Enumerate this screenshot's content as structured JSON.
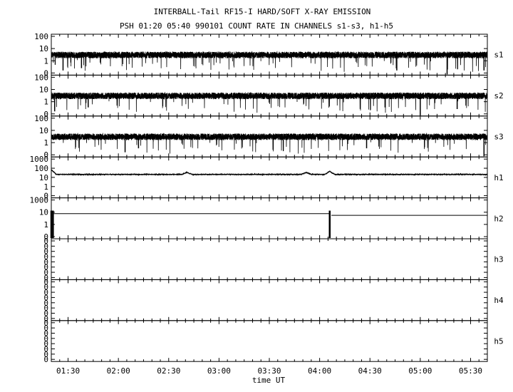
{
  "chart_data": {
    "type": "line",
    "title": "INTERBALL-Tail RF15-I HARD/SOFT X-RAY EMISSION",
    "subtitle": "PSH 01:20 05:40 990101  COUNT RATE IN CHANNELS s1-s3, h1-h5",
    "xlabel": "time UT",
    "x_range": [
      "01:20",
      "05:40"
    ],
    "x_ticks": [
      "01:30",
      "02:00",
      "02:30",
      "03:00",
      "03:30",
      "04:00",
      "04:30",
      "05:00",
      "05:30"
    ],
    "y_scale": "log",
    "grid": false,
    "panels": [
      {
        "name": "s1",
        "y_ticks": [
          "100",
          "10",
          "1",
          "0"
        ],
        "typical": 3,
        "noise": "high",
        "dips": [
          [
            "01:27",
            0.2
          ],
          [
            "01:38",
            0.3
          ],
          [
            "04:46",
            0.2
          ],
          [
            "05:16",
            0.1
          ],
          [
            "05:38",
            0.2
          ]
        ]
      },
      {
        "name": "s2",
        "y_ticks": [
          "100",
          "10",
          "1",
          "0"
        ],
        "typical": 3,
        "noise": "high",
        "dips": [
          [
            "01:22",
            0.2
          ],
          [
            "01:42",
            0.4
          ],
          [
            "04:39",
            0.4
          ],
          [
            "05:00",
            0.05
          ],
          [
            "05:22",
            0.3
          ]
        ]
      },
      {
        "name": "s3",
        "y_ticks": [
          "100",
          "10",
          "1",
          "0"
        ],
        "typical": 3,
        "noise": "high",
        "dips": [
          [
            "02:04",
            0.2
          ],
          [
            "02:12",
            0.4
          ],
          [
            "04:28",
            0.4
          ],
          [
            "05:38",
            0.05
          ]
        ]
      },
      {
        "name": "h1",
        "y_ticks": [
          "1000",
          "100",
          "10",
          "1",
          "0"
        ],
        "typical": 20,
        "noise": "low",
        "dips": [],
        "bumps": [
          [
            "01:20",
            60
          ],
          [
            "02:41",
            32
          ],
          [
            "03:52",
            32
          ],
          [
            "04:06",
            40
          ]
        ]
      },
      {
        "name": "h2",
        "y_ticks": [
          "1000",
          "10",
          "1",
          "0"
        ],
        "typical": 30,
        "segments": [
          [
            "01:21",
            "04:06",
            30
          ],
          [
            "04:07",
            "05:40",
            20
          ]
        ],
        "spikes": [
          [
            "01:20",
            0.05,
            60
          ],
          [
            "01:21",
            0.05,
            60
          ],
          [
            "04:06",
            0.05,
            60
          ]
        ]
      },
      {
        "name": "h3",
        "y_ticks": [
          "0",
          "0",
          "0",
          "0",
          "0",
          "0",
          "0",
          "0"
        ]
      },
      {
        "name": "h4",
        "y_ticks": [
          "0",
          "0",
          "0",
          "0",
          "0",
          "0",
          "0",
          "0"
        ]
      },
      {
        "name": "h5",
        "y_ticks": [
          "0",
          "0",
          "0",
          "0",
          "0",
          "0",
          "0",
          "0"
        ]
      }
    ]
  }
}
